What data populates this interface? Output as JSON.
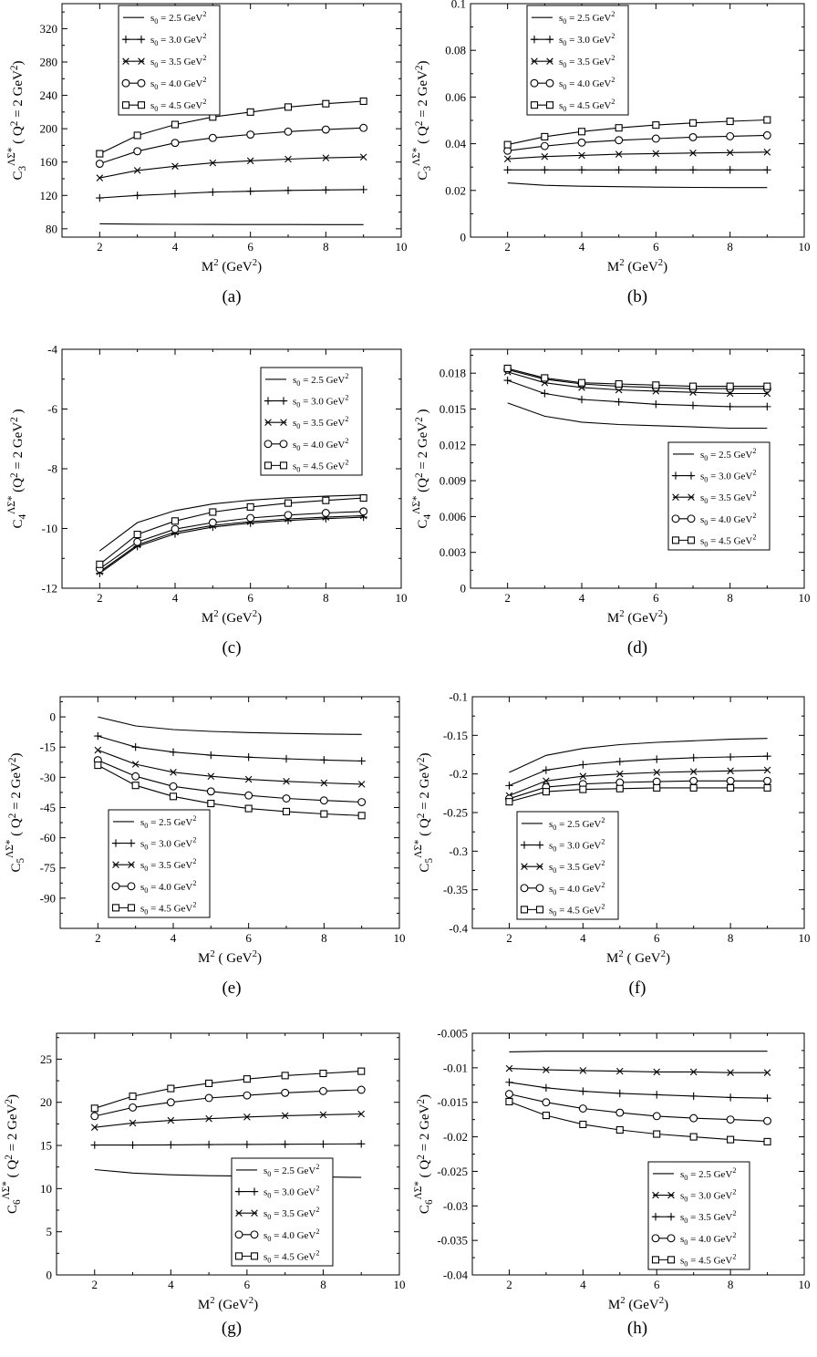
{
  "panel_captions": [
    "(a)",
    "(b)",
    "(c)",
    "(d)",
    "(e)",
    "(f)",
    "(g)",
    "(h)"
  ],
  "legend_labels": {
    "default": [
      "s0 = 2.5 GeV2",
      "s0 = 3.0 GeV2",
      "s0 = 3.5 GeV2",
      "s0 = 4.0 GeV2",
      "s0 = 4.5 GeV2"
    ]
  },
  "chart_data": [
    {
      "panel": "(a)",
      "type": "line",
      "xlabel": "M2 (GeV2)",
      "ylabel": "C3 ΛΣ* ( Q2 = 2 GeV2)",
      "xlim": [
        1,
        10
      ],
      "ylim": [
        70,
        350
      ],
      "xticks": [
        2,
        4,
        6,
        8,
        10
      ],
      "yticks": [
        80,
        120,
        160,
        200,
        240,
        280,
        320
      ],
      "ytick_labels": [
        "80",
        "120",
        "160",
        "200",
        "240",
        "280",
        "320"
      ],
      "legend_position": "top-left",
      "x": [
        2,
        3,
        4,
        5,
        6,
        7,
        8,
        9
      ],
      "series": [
        {
          "name": "s0 = 2.5 GeV2",
          "marker": "none",
          "values": [
            86,
            85.5,
            85.3,
            85.2,
            85.1,
            85.1,
            85,
            85
          ]
        },
        {
          "name": "s0 = 3.0 GeV2",
          "marker": "plus",
          "values": [
            117,
            120,
            122,
            124,
            125,
            126,
            126.5,
            127
          ]
        },
        {
          "name": "s0 = 3.5 GeV2",
          "marker": "x",
          "values": [
            141,
            150,
            155,
            159,
            161.5,
            163.5,
            165,
            166
          ]
        },
        {
          "name": "s0 = 4.0 GeV2",
          "marker": "circle",
          "values": [
            158,
            173,
            183,
            189,
            193,
            196.5,
            199,
            201
          ]
        },
        {
          "name": "s0 = 4.5 GeV2",
          "marker": "square",
          "values": [
            170,
            192,
            205,
            214,
            220,
            226,
            230,
            233
          ]
        }
      ]
    },
    {
      "panel": "(b)",
      "type": "line",
      "xlabel": "M2 (GeV2)",
      "ylabel": "C3 ΛΣ* ( Q2 = 2 GeV2)",
      "xlim": [
        1,
        10
      ],
      "ylim": [
        0,
        0.1
      ],
      "xticks": [
        2,
        4,
        6,
        8,
        10
      ],
      "yticks": [
        0,
        0.02,
        0.04,
        0.06,
        0.08,
        0.1
      ],
      "ytick_labels": [
        "0",
        "0.02",
        "0.04",
        "0.06",
        "0.08",
        "0.1"
      ],
      "legend_position": "top-left",
      "x": [
        2,
        3,
        4,
        5,
        6,
        7,
        8,
        9
      ],
      "series": [
        {
          "name": "s0 = 2.5 GeV2",
          "marker": "none",
          "values": [
            0.0232,
            0.0222,
            0.0218,
            0.0216,
            0.0214,
            0.0213,
            0.0212,
            0.0212
          ]
        },
        {
          "name": "s0 = 3.0 GeV2",
          "marker": "plus",
          "values": [
            0.0288,
            0.0288,
            0.0288,
            0.0288,
            0.0288,
            0.0288,
            0.0288,
            0.0288
          ]
        },
        {
          "name": "s0 = 3.5 GeV2",
          "marker": "x",
          "values": [
            0.0335,
            0.0345,
            0.035,
            0.0355,
            0.0358,
            0.036,
            0.0362,
            0.0364
          ]
        },
        {
          "name": "s0 = 4.0 GeV2",
          "marker": "circle",
          "values": [
            0.037,
            0.039,
            0.0405,
            0.0415,
            0.0422,
            0.0428,
            0.0432,
            0.0436
          ]
        },
        {
          "name": "s0 = 4.5 GeV2",
          "marker": "square",
          "values": [
            0.0396,
            0.043,
            0.0452,
            0.0468,
            0.048,
            0.0489,
            0.0496,
            0.0502
          ]
        }
      ]
    },
    {
      "panel": "(c)",
      "type": "line",
      "xlabel": "M2 (GeV2)",
      "ylabel": "C4 ΛΣ* (Q2 = 2 GeV2 )",
      "xlim": [
        1,
        10
      ],
      "ylim": [
        -12,
        -4
      ],
      "xticks": [
        2,
        4,
        6,
        8,
        10
      ],
      "yticks": [
        -12,
        -10,
        -8,
        -6,
        -4
      ],
      "ytick_labels": [
        "-12",
        "-10",
        "-8",
        "-6",
        "-4"
      ],
      "legend_position": "top-right",
      "x": [
        2,
        3,
        4,
        5,
        6,
        7,
        8,
        9
      ],
      "series": [
        {
          "name": "s0 = 2.5 GeV2",
          "marker": "none",
          "values": [
            -10.75,
            -9.8,
            -9.4,
            -9.18,
            -9.05,
            -8.97,
            -8.92,
            -8.88
          ]
        },
        {
          "name": "s0 = 3.0 GeV2",
          "marker": "plus",
          "values": [
            -11.5,
            -10.6,
            -10.18,
            -9.95,
            -9.82,
            -9.73,
            -9.67,
            -9.62
          ]
        },
        {
          "name": "s0 = 3.5 GeV2",
          "marker": "x",
          "values": [
            -11.45,
            -10.55,
            -10.12,
            -9.9,
            -9.77,
            -9.68,
            -9.62,
            -9.57
          ]
        },
        {
          "name": "s0 = 4.0 GeV2",
          "marker": "circle",
          "values": [
            -11.35,
            -10.45,
            -10.02,
            -9.8,
            -9.65,
            -9.55,
            -9.48,
            -9.43
          ]
        },
        {
          "name": "s0 = 4.5 GeV2",
          "marker": "square",
          "values": [
            -11.2,
            -10.2,
            -9.75,
            -9.45,
            -9.28,
            -9.15,
            -9.06,
            -8.98
          ]
        }
      ]
    },
    {
      "panel": "(d)",
      "type": "line",
      "xlabel": "M2 (GeV2)",
      "ylabel": "C4 ΛΣ* (Q2 = 2 GeV2 )",
      "xlim": [
        1,
        10
      ],
      "ylim": [
        0,
        0.02
      ],
      "xticks": [
        2,
        4,
        6,
        8,
        10
      ],
      "yticks": [
        0,
        0.003,
        0.006,
        0.009,
        0.012,
        0.015,
        0.018
      ],
      "ytick_labels": [
        "0",
        "0.003",
        "0.006",
        "0.009",
        "0.012",
        "0.015",
        "0.018"
      ],
      "legend_position": "bottom-right",
      "x": [
        2,
        3,
        4,
        5,
        6,
        7,
        8,
        9
      ],
      "series": [
        {
          "name": "s0 = 2.5 GeV2",
          "marker": "none",
          "values": [
            0.0155,
            0.0144,
            0.0139,
            0.0137,
            0.0136,
            0.0135,
            0.0134,
            0.0134
          ]
        },
        {
          "name": "s0 = 3.0 GeV2",
          "marker": "plus",
          "values": [
            0.0174,
            0.0163,
            0.0158,
            0.0156,
            0.0154,
            0.0153,
            0.0152,
            0.0152
          ]
        },
        {
          "name": "s0 = 3.5 GeV2",
          "marker": "x",
          "values": [
            0.0181,
            0.0172,
            0.0168,
            0.0166,
            0.0165,
            0.0164,
            0.0163,
            0.0163
          ]
        },
        {
          "name": "s0 = 4.0 GeV2",
          "marker": "circle",
          "values": [
            0.0183,
            0.0175,
            0.0171,
            0.0169,
            0.0168,
            0.0167,
            0.0167,
            0.0167
          ]
        },
        {
          "name": "s0 = 4.5 GeV2",
          "marker": "square",
          "values": [
            0.0184,
            0.0176,
            0.0172,
            0.0171,
            0.017,
            0.0169,
            0.0169,
            0.0169
          ]
        }
      ]
    },
    {
      "panel": "(e)",
      "type": "line",
      "xlabel": "M2 ( GeV2)",
      "ylabel": "C5 ΛΣ* ( Q2 = 2 GeV2)",
      "xlim": [
        1,
        10
      ],
      "ylim": [
        -105,
        10
      ],
      "xticks": [
        2,
        4,
        6,
        8,
        10
      ],
      "yticks": [
        -90,
        -75,
        -60,
        -45,
        -30,
        -15,
        0
      ],
      "ytick_labels": [
        "-90",
        "-75",
        "-60",
        "-45",
        "-30",
        "-15",
        "0"
      ],
      "legend_position": "bottom-left",
      "x": [
        2,
        3,
        4,
        5,
        6,
        7,
        8,
        9
      ],
      "series": [
        {
          "name": "s0 = 2.5 GeV2",
          "marker": "none",
          "values": [
            0,
            -4.5,
            -6.3,
            -7.2,
            -7.8,
            -8.2,
            -8.5,
            -8.7
          ]
        },
        {
          "name": "s0 = 3.0 GeV2",
          "marker": "plus",
          "values": [
            -9.5,
            -15,
            -17.5,
            -19,
            -20,
            -20.8,
            -21.4,
            -21.9
          ]
        },
        {
          "name": "s0 = 3.5 GeV2",
          "marker": "x",
          "values": [
            -16.5,
            -23.5,
            -27.5,
            -29.5,
            -31,
            -32,
            -32.8,
            -33.4
          ]
        },
        {
          "name": "s0 = 4.0 GeV2",
          "marker": "circle",
          "values": [
            -21.5,
            -29.5,
            -34.5,
            -37,
            -39,
            -40.5,
            -41.5,
            -42.3
          ]
        },
        {
          "name": "s0 = 4.5 GeV2",
          "marker": "square",
          "values": [
            -24,
            -34,
            -39.5,
            -43,
            -45.5,
            -47,
            -48.2,
            -49
          ]
        }
      ]
    },
    {
      "panel": "(f)",
      "type": "line",
      "xlabel": "M2 ( GeV2)",
      "ylabel": "C5 ΛΣ* ( Q2 = 2 GeV2)",
      "xlim": [
        1,
        10
      ],
      "ylim": [
        -0.4,
        -0.1
      ],
      "xticks": [
        2,
        4,
        6,
        8,
        10
      ],
      "yticks": [
        -0.4,
        -0.35,
        -0.3,
        -0.25,
        -0.2,
        -0.15,
        -0.1
      ],
      "ytick_labels": [
        "-0.4",
        "-0.35",
        "-0.3",
        "-0.25",
        "-0.2",
        "-0.15",
        "-0.1"
      ],
      "legend_position": "bottom-left",
      "x": [
        2,
        3,
        4,
        5,
        6,
        7,
        8,
        9
      ],
      "series": [
        {
          "name": "s0 = 2.5 GeV2",
          "marker": "none",
          "values": [
            -0.198,
            -0.176,
            -0.167,
            -0.162,
            -0.159,
            -0.157,
            -0.155,
            -0.154
          ]
        },
        {
          "name": "s0 = 3.0 GeV2",
          "marker": "plus",
          "values": [
            -0.215,
            -0.195,
            -0.188,
            -0.184,
            -0.181,
            -0.179,
            -0.178,
            -0.177
          ]
        },
        {
          "name": "s0 = 3.5 GeV2",
          "marker": "x",
          "values": [
            -0.228,
            -0.209,
            -0.203,
            -0.2,
            -0.198,
            -0.197,
            -0.196,
            -0.195
          ]
        },
        {
          "name": "s0 = 4.0 GeV2",
          "marker": "circle",
          "values": [
            -0.232,
            -0.217,
            -0.213,
            -0.211,
            -0.21,
            -0.209,
            -0.209,
            -0.209
          ]
        },
        {
          "name": "s0 = 4.5 GeV2",
          "marker": "square",
          "values": [
            -0.236,
            -0.223,
            -0.22,
            -0.219,
            -0.218,
            -0.218,
            -0.218,
            -0.218
          ]
        }
      ]
    },
    {
      "panel": "(g)",
      "type": "line",
      "xlabel": "M2 (GeV2)",
      "ylabel": "C6 ΛΣ* ( Q2 = 2 GeV2)",
      "xlim": [
        1,
        10
      ],
      "ylim": [
        0,
        28
      ],
      "xticks": [
        2,
        4,
        6,
        8,
        10
      ],
      "yticks": [
        0,
        5,
        10,
        15,
        20,
        25
      ],
      "ytick_labels": [
        "0",
        "5",
        "10",
        "15",
        "20",
        "25"
      ],
      "legend_position": "bottom-right",
      "x": [
        2,
        3,
        4,
        5,
        6,
        7,
        8,
        9
      ],
      "series": [
        {
          "name": "s0 = 2.5 GeV2",
          "marker": "none",
          "values": [
            12.2,
            11.8,
            11.6,
            11.5,
            11.45,
            11.4,
            11.35,
            11.3
          ]
        },
        {
          "name": "s0 = 3.0 GeV2",
          "marker": "plus",
          "values": [
            15.05,
            15.05,
            15.07,
            15.1,
            15.12,
            15.14,
            15.16,
            15.18
          ]
        },
        {
          "name": "s0 = 3.5 GeV2",
          "marker": "x",
          "values": [
            17.1,
            17.6,
            17.9,
            18.1,
            18.3,
            18.45,
            18.55,
            18.65
          ]
        },
        {
          "name": "s0 = 4.0 GeV2",
          "marker": "circle",
          "values": [
            18.4,
            19.4,
            20.0,
            20.5,
            20.8,
            21.1,
            21.3,
            21.45
          ]
        },
        {
          "name": "s0 = 4.5 GeV2",
          "marker": "square",
          "values": [
            19.3,
            20.7,
            21.6,
            22.2,
            22.7,
            23.1,
            23.35,
            23.6
          ]
        }
      ]
    },
    {
      "panel": "(h)",
      "type": "line",
      "xlabel": "M2 (GeV2)",
      "ylabel": "C6 ΛΣ* ( Q2 = 2 GeV2)",
      "xlim": [
        1,
        10
      ],
      "ylim": [
        -0.04,
        -0.005
      ],
      "xticks": [
        2,
        4,
        6,
        8,
        10
      ],
      "yticks": [
        -0.04,
        -0.035,
        -0.03,
        -0.025,
        -0.02,
        -0.015,
        -0.01,
        -0.005
      ],
      "ytick_labels": [
        "-0.04",
        "-0.035",
        "-0.03",
        "-0.025",
        "-0.02",
        "-0.015",
        "-0.01",
        "-0.005"
      ],
      "legend_position": "bottom-right",
      "x": [
        2,
        3,
        4,
        5,
        6,
        7,
        8,
        9
      ],
      "series": [
        {
          "name": "s0 = 2.5 GeV2",
          "marker": "none",
          "values": [
            -0.0077,
            -0.0076,
            -0.0076,
            -0.0076,
            -0.0076,
            -0.0076,
            -0.0076,
            -0.0076
          ]
        },
        {
          "name": "s0 = 3.0 GeV2",
          "marker": "x",
          "values": [
            -0.0101,
            -0.0103,
            -0.0104,
            -0.0105,
            -0.0106,
            -0.0106,
            -0.0107,
            -0.0107
          ]
        },
        {
          "name": "s0 = 3.5 GeV2",
          "marker": "plus",
          "values": [
            -0.0121,
            -0.0129,
            -0.0134,
            -0.0137,
            -0.0139,
            -0.0141,
            -0.0143,
            -0.0144
          ]
        },
        {
          "name": "s0 = 4.0 GeV2",
          "marker": "circle",
          "values": [
            -0.0138,
            -0.015,
            -0.0159,
            -0.0165,
            -0.017,
            -0.0173,
            -0.0175,
            -0.0177
          ]
        },
        {
          "name": "s0 = 4.5 GeV2",
          "marker": "square",
          "values": [
            -0.0149,
            -0.0169,
            -0.0182,
            -0.019,
            -0.0196,
            -0.02,
            -0.0204,
            -0.0207
          ]
        }
      ]
    }
  ]
}
